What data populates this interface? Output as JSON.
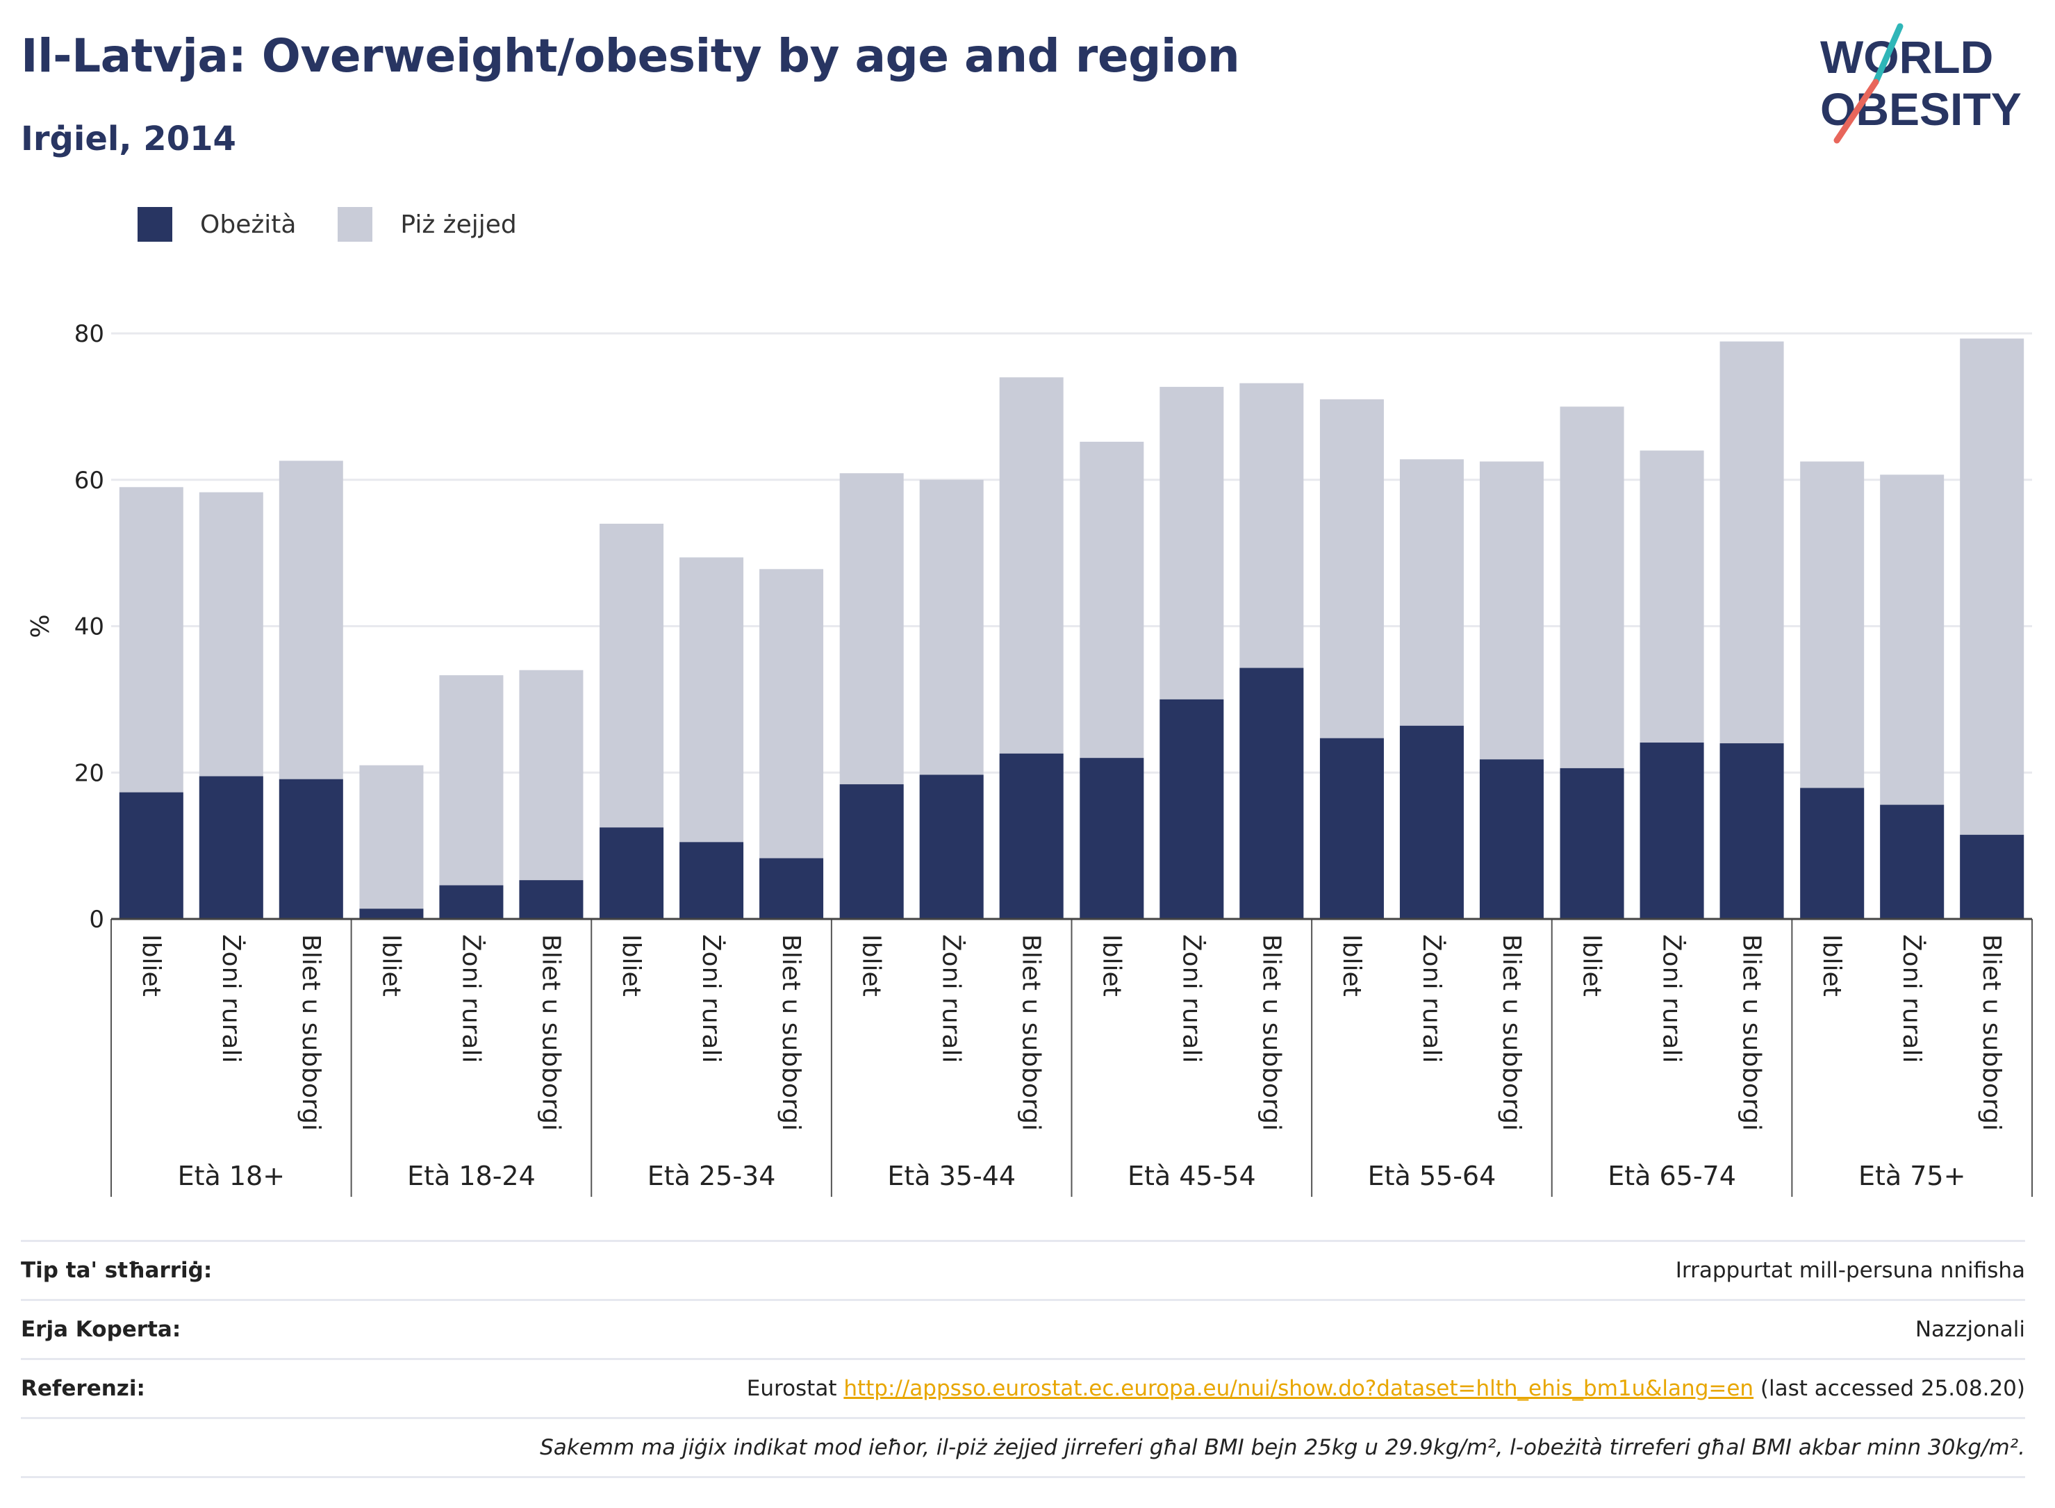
{
  "header": {
    "title": "Il-Latvja: Overweight/obesity by age and region",
    "subtitle": "Irġiel, 2014"
  },
  "logo": {
    "line1": "WORLD",
    "line2": "OBESITY"
  },
  "colors": {
    "obesity": "#283562",
    "overweight": "#c9ccd8",
    "accent_teal": "#2fb6b8",
    "accent_red": "#e8665b"
  },
  "legend": [
    {
      "label": "Obeżità",
      "color": "#283562"
    },
    {
      "label": "Piż żejjed",
      "color": "#c9ccd8"
    }
  ],
  "chart_data": {
    "type": "bar",
    "stacked": true,
    "ylabel": "%",
    "ylim": [
      0,
      80
    ],
    "yticks": [
      0,
      20,
      40,
      60,
      80
    ],
    "grid": true,
    "groups": [
      {
        "label": "Età 18+",
        "bars": [
          {
            "region": "Ibliet",
            "obesity": 17.3,
            "total": 59.0
          },
          {
            "region": "Żoni rurali",
            "obesity": 19.5,
            "total": 58.3
          },
          {
            "region": "Bliet u subborgi",
            "obesity": 19.1,
            "total": 62.6
          }
        ]
      },
      {
        "label": "Età 18-24",
        "bars": [
          {
            "region": "Ibliet",
            "obesity": 1.4,
            "total": 21.0
          },
          {
            "region": "Żoni rurali",
            "obesity": 4.6,
            "total": 33.3
          },
          {
            "region": "Bliet u subborgi",
            "obesity": 5.3,
            "total": 34.0
          }
        ]
      },
      {
        "label": "Età 25-34",
        "bars": [
          {
            "region": "Ibliet",
            "obesity": 12.5,
            "total": 54.0
          },
          {
            "region": "Żoni rurali",
            "obesity": 10.5,
            "total": 49.4
          },
          {
            "region": "Bliet u subborgi",
            "obesity": 8.3,
            "total": 47.8
          }
        ]
      },
      {
        "label": "Età 35-44",
        "bars": [
          {
            "region": "Ibliet",
            "obesity": 18.4,
            "total": 60.9
          },
          {
            "region": "Żoni rurali",
            "obesity": 19.7,
            "total": 60.0
          },
          {
            "region": "Bliet u subborgi",
            "obesity": 22.6,
            "total": 74.0
          }
        ]
      },
      {
        "label": "Età 45-54",
        "bars": [
          {
            "region": "Ibliet",
            "obesity": 22.0,
            "total": 65.2
          },
          {
            "region": "Żoni rurali",
            "obesity": 30.0,
            "total": 72.7
          },
          {
            "region": "Bliet u subborgi",
            "obesity": 34.3,
            "total": 73.2
          }
        ]
      },
      {
        "label": "Età 55-64",
        "bars": [
          {
            "region": "Ibliet",
            "obesity": 24.7,
            "total": 71.0
          },
          {
            "region": "Żoni rurali",
            "obesity": 26.4,
            "total": 62.8
          },
          {
            "region": "Bliet u subborgi",
            "obesity": 21.8,
            "total": 62.5
          }
        ]
      },
      {
        "label": "Età 65-74",
        "bars": [
          {
            "region": "Ibliet",
            "obesity": 20.6,
            "total": 70.0
          },
          {
            "region": "Żoni rurali",
            "obesity": 24.1,
            "total": 64.0
          },
          {
            "region": "Bliet u subborgi",
            "obesity": 24.0,
            "total": 78.9
          }
        ]
      },
      {
        "label": "Età 75+",
        "bars": [
          {
            "region": "Ibliet",
            "obesity": 17.9,
            "total": 62.5
          },
          {
            "region": "Żoni rurali",
            "obesity": 15.6,
            "total": 60.7
          },
          {
            "region": "Bliet u subborgi",
            "obesity": 11.5,
            "total": 79.3
          }
        ]
      }
    ]
  },
  "footer": {
    "rows": [
      {
        "label": "Tip ta' stħarriġ:",
        "value": "Irrappurtat mill-persuna nnifisha"
      },
      {
        "label": "Erja Koperta:",
        "value": "Nazzjonali"
      }
    ],
    "reference": {
      "label": "Referenzi:",
      "prefix": "Eurostat ",
      "link": "http://appsso.eurostat.ec.europa.eu/nui/show.do?dataset=hlth_ehis_bm1u&lang=en",
      "suffix": " (last accessed 25.08.20)"
    },
    "note": "Sakemm ma jiġix indikat mod ieħor, il-piż żejjed jirreferi għal BMI bejn 25kg u 29.9kg/m², l-obeżità tirreferi għal BMI akbar minn 30kg/m²."
  }
}
